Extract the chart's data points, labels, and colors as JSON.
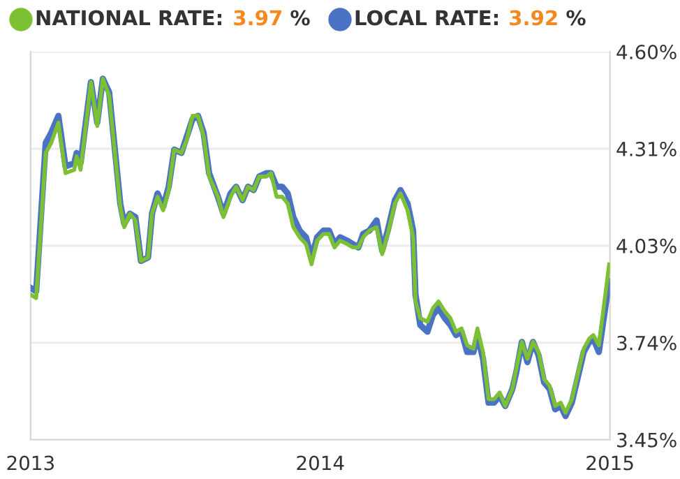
{
  "chart_data": {
    "type": "line",
    "x": [
      "2013-01-01",
      "2013-01-08",
      "2013-01-20",
      "2013-01-27",
      "2013-02-05",
      "2013-02-14",
      "2013-02-25",
      "2013-02-28",
      "2013-03-05",
      "2013-03-18",
      "2013-03-26",
      "2013-04-02",
      "2013-04-10",
      "2013-04-24",
      "2013-04-29",
      "2013-05-06",
      "2013-05-13",
      "2013-05-20",
      "2013-05-29",
      "2013-06-03",
      "2013-06-10",
      "2013-06-17",
      "2013-06-24",
      "2013-07-01",
      "2013-07-10",
      "2013-07-17",
      "2013-07-24",
      "2013-07-31",
      "2013-08-07",
      "2013-08-14",
      "2013-08-25",
      "2013-09-01",
      "2013-09-10",
      "2013-09-17",
      "2013-09-25",
      "2013-10-02",
      "2013-10-09",
      "2013-10-16",
      "2013-10-25",
      "2013-10-31",
      "2013-11-07",
      "2013-11-14",
      "2013-11-21",
      "2013-11-28",
      "2013-12-06",
      "2013-12-14",
      "2013-12-21",
      "2013-12-28",
      "2014-01-05",
      "2014-01-12",
      "2014-01-19",
      "2014-01-26",
      "2014-02-04",
      "2014-02-11",
      "2014-02-18",
      "2014-02-24",
      "2014-03-04",
      "2014-03-13",
      "2014-03-20",
      "2014-03-27",
      "2014-04-05",
      "2014-04-12",
      "2014-04-21",
      "2014-04-28",
      "2014-05-01",
      "2014-05-07",
      "2014-05-16",
      "2014-05-23",
      "2014-05-30",
      "2014-06-07",
      "2014-06-14",
      "2014-06-21",
      "2014-06-28",
      "2014-07-05",
      "2014-07-13",
      "2014-07-18",
      "2014-07-25",
      "2014-08-01",
      "2014-08-08",
      "2014-08-15",
      "2014-08-22",
      "2014-08-31",
      "2014-09-05",
      "2014-09-12",
      "2014-09-19",
      "2014-09-26",
      "2014-10-03",
      "2014-10-10",
      "2014-10-17",
      "2014-10-24",
      "2014-10-31",
      "2014-11-06",
      "2014-11-14",
      "2014-11-22",
      "2014-11-29",
      "2014-12-06",
      "2014-12-11",
      "2014-12-18",
      "2014-12-31"
    ],
    "series": [
      {
        "name": "NATIONAL RATE:",
        "color": "#7cc034",
        "values": [
          3.88,
          3.87,
          4.3,
          4.33,
          4.39,
          4.24,
          4.25,
          4.29,
          4.25,
          4.51,
          4.38,
          4.52,
          4.47,
          4.14,
          4.08,
          4.12,
          4.1,
          3.98,
          3.99,
          4.12,
          4.17,
          4.13,
          4.19,
          4.31,
          4.3,
          4.34,
          4.41,
          4.41,
          4.35,
          4.23,
          4.17,
          4.11,
          4.17,
          4.2,
          4.16,
          4.2,
          4.19,
          4.23,
          4.23,
          4.24,
          4.17,
          4.17,
          4.15,
          4.08,
          4.05,
          4.03,
          3.97,
          4.04,
          4.06,
          4.06,
          4.02,
          4.04,
          4.03,
          4.02,
          4.02,
          4.05,
          4.07,
          4.08,
          4.0,
          4.06,
          4.15,
          4.18,
          4.13,
          4.05,
          3.86,
          3.81,
          3.8,
          3.84,
          3.86,
          3.83,
          3.81,
          3.77,
          3.78,
          3.73,
          3.72,
          3.78,
          3.71,
          3.57,
          3.57,
          3.59,
          3.55,
          3.6,
          3.66,
          3.74,
          3.69,
          3.74,
          3.71,
          3.63,
          3.61,
          3.55,
          3.56,
          3.53,
          3.57,
          3.65,
          3.72,
          3.75,
          3.76,
          3.73,
          3.97
        ]
      },
      {
        "name": "LOCAL RATE:",
        "color": "#4b72c4",
        "values": [
          3.9,
          3.89,
          4.33,
          4.36,
          4.41,
          4.26,
          4.27,
          4.3,
          4.27,
          4.51,
          4.39,
          4.52,
          4.48,
          4.15,
          4.09,
          4.12,
          4.11,
          3.98,
          3.99,
          4.12,
          4.18,
          4.14,
          4.2,
          4.31,
          4.3,
          4.35,
          4.4,
          4.41,
          4.36,
          4.24,
          4.17,
          4.12,
          4.18,
          4.2,
          4.16,
          4.2,
          4.19,
          4.23,
          4.24,
          4.24,
          4.2,
          4.2,
          4.18,
          4.11,
          4.07,
          4.05,
          3.99,
          4.05,
          4.07,
          4.07,
          4.03,
          4.05,
          4.04,
          4.03,
          4.02,
          4.06,
          4.07,
          4.1,
          4.01,
          4.07,
          4.16,
          4.19,
          4.15,
          4.07,
          3.88,
          3.79,
          3.77,
          3.82,
          3.84,
          3.81,
          3.79,
          3.76,
          3.77,
          3.71,
          3.71,
          3.76,
          3.69,
          3.56,
          3.56,
          3.58,
          3.55,
          3.6,
          3.65,
          3.74,
          3.68,
          3.74,
          3.7,
          3.62,
          3.6,
          3.54,
          3.55,
          3.52,
          3.56,
          3.64,
          3.71,
          3.74,
          3.75,
          3.71,
          3.92
        ]
      }
    ],
    "annotations": [
      "3.97 %",
      "3.92 %"
    ],
    "xlim": [
      "2013-01-01",
      "2015-01-01"
    ],
    "xticks": [
      {
        "value": "2013-01-01",
        "label": "2013"
      },
      {
        "value": "2014-01-01",
        "label": "2014"
      },
      {
        "value": "2015-01-01",
        "label": "2015"
      }
    ],
    "ylim": [
      3.45,
      4.6
    ],
    "yticks": [
      {
        "value": 3.45,
        "label": "3.45%"
      },
      {
        "value": 3.7375,
        "label": "3.74%"
      },
      {
        "value": 4.025,
        "label": "4.03%"
      },
      {
        "value": 4.3125,
        "label": "4.31%"
      },
      {
        "value": 4.6,
        "label": "4.60%"
      }
    ],
    "grid": "y",
    "legend": "top",
    "marker": "none",
    "line_style": "solid"
  }
}
